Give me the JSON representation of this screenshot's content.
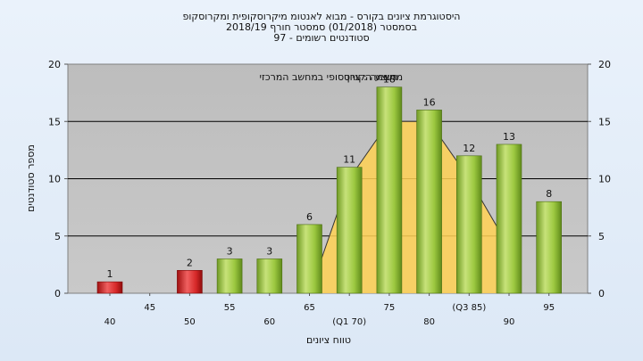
{
  "title_lines": [
    "היסטוגרמת ציונים בקורס - מבוא לאנטומ מיקרוסקופית ומקרוסקופ",
    "בסמסטר  (01/2018)  סמסטר חורף  2018/19",
    "97 - סטודנטים רשומים"
  ],
  "colors": {
    "plot_background": "#c0c0c0",
    "bar_fail": "#d62828",
    "bar_pass": "#9cc840",
    "curve_fill": "#ffd154",
    "gridline": "#000000"
  },
  "chart_data": {
    "type": "bar",
    "title": "היסטוגרמת ציונים בקורס - מבוא לאנטומ מיקרוסקופית ומקרוסקופ",
    "xlabel": "טווח ציונים",
    "ylabel": "מספר סטודנטים",
    "ylim": [
      0,
      20
    ],
    "yticks": [
      0,
      5,
      10,
      15,
      20
    ],
    "grid": true,
    "categories": [
      40,
      45,
      50,
      55,
      60,
      65,
      70,
      75,
      80,
      85,
      90,
      95
    ],
    "category_labels": [
      "40",
      "45",
      "50",
      "55",
      "60",
      "65",
      "(Q1 70)",
      "75",
      "80",
      "(Q3 85)",
      "90",
      "95"
    ],
    "values": [
      1,
      0,
      2,
      3,
      3,
      6,
      11,
      18,
      16,
      12,
      13,
      8
    ],
    "value_labels": [
      "1",
      "",
      "2",
      "3",
      "3",
      "6",
      "11",
      "18",
      "16",
      "12",
      "13",
      "8"
    ],
    "failing_categories": [
      40,
      45,
      50
    ],
    "annotation": "ממוצע הקורס",
    "annotation_overlay": "רשימה : ציון סופי במחשב המרכזי",
    "distribution_curve": {
      "x": [
        65,
        70,
        75,
        80,
        85,
        90
      ],
      "y": [
        0,
        10,
        15,
        15,
        10,
        4
      ]
    }
  }
}
